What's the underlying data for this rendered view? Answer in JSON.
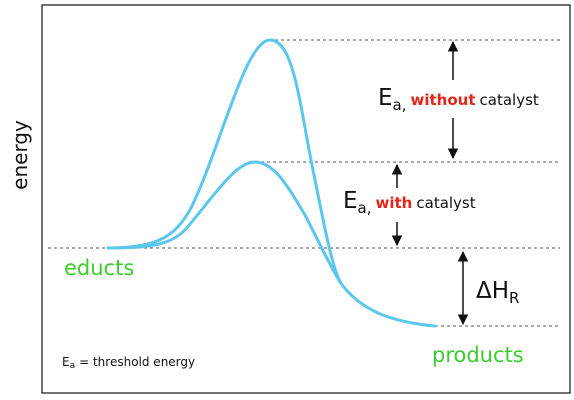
{
  "axis_label": "energy",
  "uncatalyzed": {
    "symbol": "E",
    "subscript": "a,",
    "highlight": "without",
    "suffix": "catalyst"
  },
  "catalyzed": {
    "symbol": "E",
    "subscript": "a,",
    "highlight": "with",
    "suffix": "catalyst"
  },
  "enthalpy": {
    "symbol": "ΔH",
    "subscript": "R"
  },
  "educts": "educts",
  "products": "products",
  "note": {
    "symbol": "E",
    "subscript": "a",
    "text": "= threshold energy"
  }
}
